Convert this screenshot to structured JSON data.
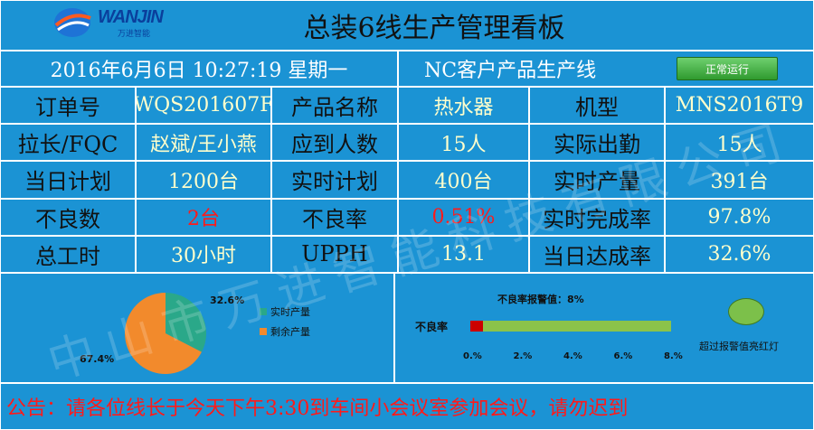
{
  "logo": {
    "brand": "WANJIN",
    "subtitle": "万进智能"
  },
  "title": "总装6线生产管理看板",
  "header": {
    "datetime": "2016年6月6日  10:27:19  星期一",
    "line_name": "NC客户产品生产线",
    "status_button": "正常运行"
  },
  "rows": [
    [
      {
        "k": "订单号"
      },
      {
        "v": "WQS201607F"
      },
      {
        "k": "产品名称"
      },
      {
        "v": "热水器"
      },
      {
        "k": "机型"
      },
      {
        "v": "MNS2016T9"
      }
    ],
    [
      {
        "k": "拉长/FQC"
      },
      {
        "v": "赵斌/王小燕"
      },
      {
        "k": "应到人数"
      },
      {
        "v": "15人"
      },
      {
        "k": "实际出勤"
      },
      {
        "v": "15人"
      }
    ],
    [
      {
        "k": "当日计划"
      },
      {
        "v": "1200台"
      },
      {
        "k": "实时计划"
      },
      {
        "v": "400台"
      },
      {
        "k": "实时产量"
      },
      {
        "v": "391台"
      }
    ],
    [
      {
        "k": "不良数"
      },
      {
        "v": "2台"
      },
      {
        "k": "不良率"
      },
      {
        "v": "0.51%"
      },
      {
        "k": "实时完成率"
      },
      {
        "v": "97.8%"
      }
    ],
    [
      {
        "k": "总工时"
      },
      {
        "v": "30小时"
      },
      {
        "k": "UPPH"
      },
      {
        "v": "13.1"
      },
      {
        "k": "当日达成率"
      },
      {
        "v": "32.6%"
      }
    ]
  ],
  "pie": {
    "slices": [
      {
        "label": "实时产量",
        "value": 32.6,
        "value_label": "32.6%",
        "color": "#2aa889"
      },
      {
        "label": "剩余产量",
        "value": 67.4,
        "value_label": "67.4%",
        "color": "#f28a2c"
      }
    ]
  },
  "defect_bar": {
    "title": "不良率报警值：8%",
    "row_label": "不良率",
    "value": 0.51,
    "max": 8,
    "ticks": [
      "0.%",
      "2.%",
      "4.%",
      "6.%",
      "8.%"
    ],
    "track_color": "#8bc34a",
    "fill_color": "#cc0000"
  },
  "alarm": {
    "label": "超过报警值亮红灯",
    "color": "#7cc04a"
  },
  "notice": "公告：请各位线长于今天下午3:30到车间小会议室参加会议，请勿迟到",
  "watermark": "中山市万进智能科技有限公司"
}
